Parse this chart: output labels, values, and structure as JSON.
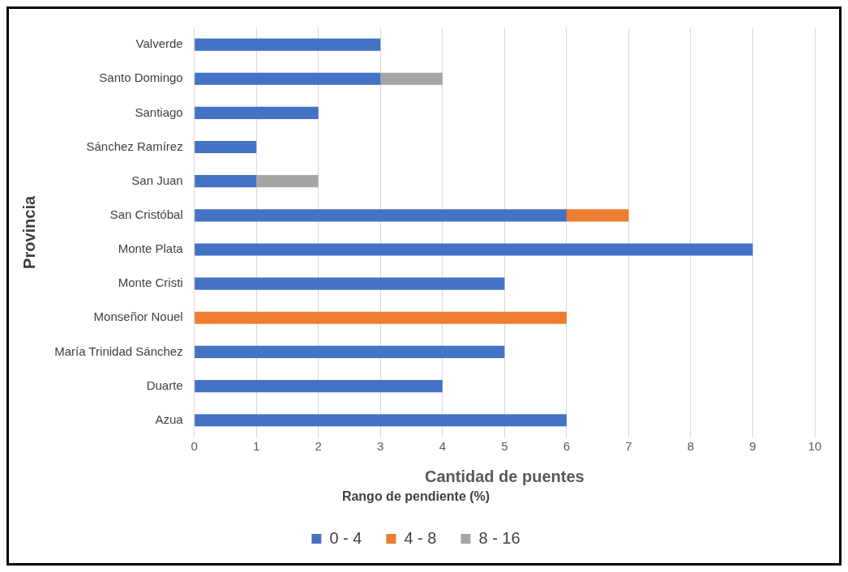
{
  "chart_data": {
    "type": "bar",
    "orientation": "horizontal",
    "stacked": true,
    "xlabel": "Cantidad de puentes",
    "ylabel": "Provincia",
    "legend_title": "Rango de pendiente (%)",
    "legend": "bottom",
    "grid": "x",
    "categories": [
      "Valverde",
      "Santo Domingo",
      "Santiago",
      "Sánchez Ramírez",
      "San Juan",
      "San Cristóbal",
      "Monte Plata",
      "Monte Cristi",
      "Monseñor Nouel",
      "María Trinidad Sánchez",
      "Duarte",
      "Azua"
    ],
    "series": [
      {
        "name": "0 - 4",
        "color": "#4472c4",
        "values": [
          3,
          3,
          2,
          1,
          1,
          6,
          9,
          5,
          null,
          5,
          4,
          6
        ]
      },
      {
        "name": "4 - 8",
        "color": "#ed7d31",
        "values": [
          null,
          null,
          null,
          null,
          null,
          1,
          null,
          null,
          6,
          null,
          null,
          null
        ]
      },
      {
        "name": "8 - 16",
        "color": "#a5a5a5",
        "values": [
          null,
          1,
          null,
          null,
          1,
          null,
          null,
          null,
          null,
          null,
          null,
          null
        ]
      }
    ],
    "xlim": [
      0,
      10
    ],
    "xticks": [
      0,
      1,
      2,
      3,
      4,
      5,
      6,
      7,
      8,
      9,
      10
    ]
  }
}
